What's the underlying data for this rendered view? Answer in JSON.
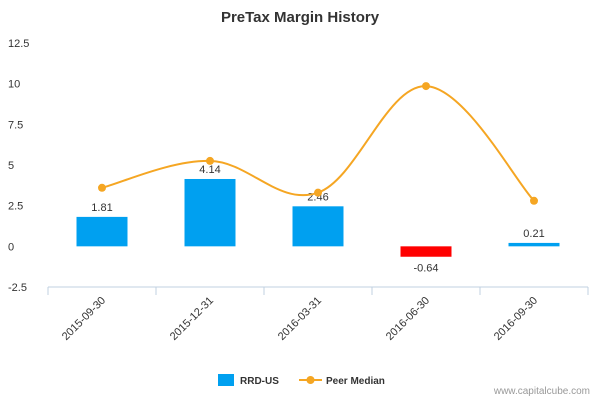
{
  "chart_data": {
    "type": "bar",
    "title": "PreTax Margin History",
    "categories": [
      "2015-09-30",
      "2015-12-31",
      "2016-03-31",
      "2016-06-30",
      "2016-09-30"
    ],
    "series": [
      {
        "name": "RRD-US",
        "kind": "bar",
        "values": [
          1.81,
          4.14,
          2.46,
          -0.64,
          0.21
        ],
        "data_labels": [
          "1.81",
          "4.14",
          "2.46",
          "-0.64",
          "0.21"
        ],
        "color": "#00a0f0",
        "negative_color": "#ff0000"
      },
      {
        "name": "Peer Median",
        "kind": "spline",
        "values": [
          3.6,
          5.25,
          3.3,
          9.85,
          2.8
        ],
        "color": "#f5a623"
      }
    ],
    "yticks": [
      "12.5",
      "10",
      "7.5",
      "5",
      "2.5",
      "0",
      "-2.5"
    ],
    "ylim": [
      -2.5,
      12.5
    ],
    "grid": false,
    "legend": "bottom-center"
  },
  "credit": "www.capitalcube.com"
}
